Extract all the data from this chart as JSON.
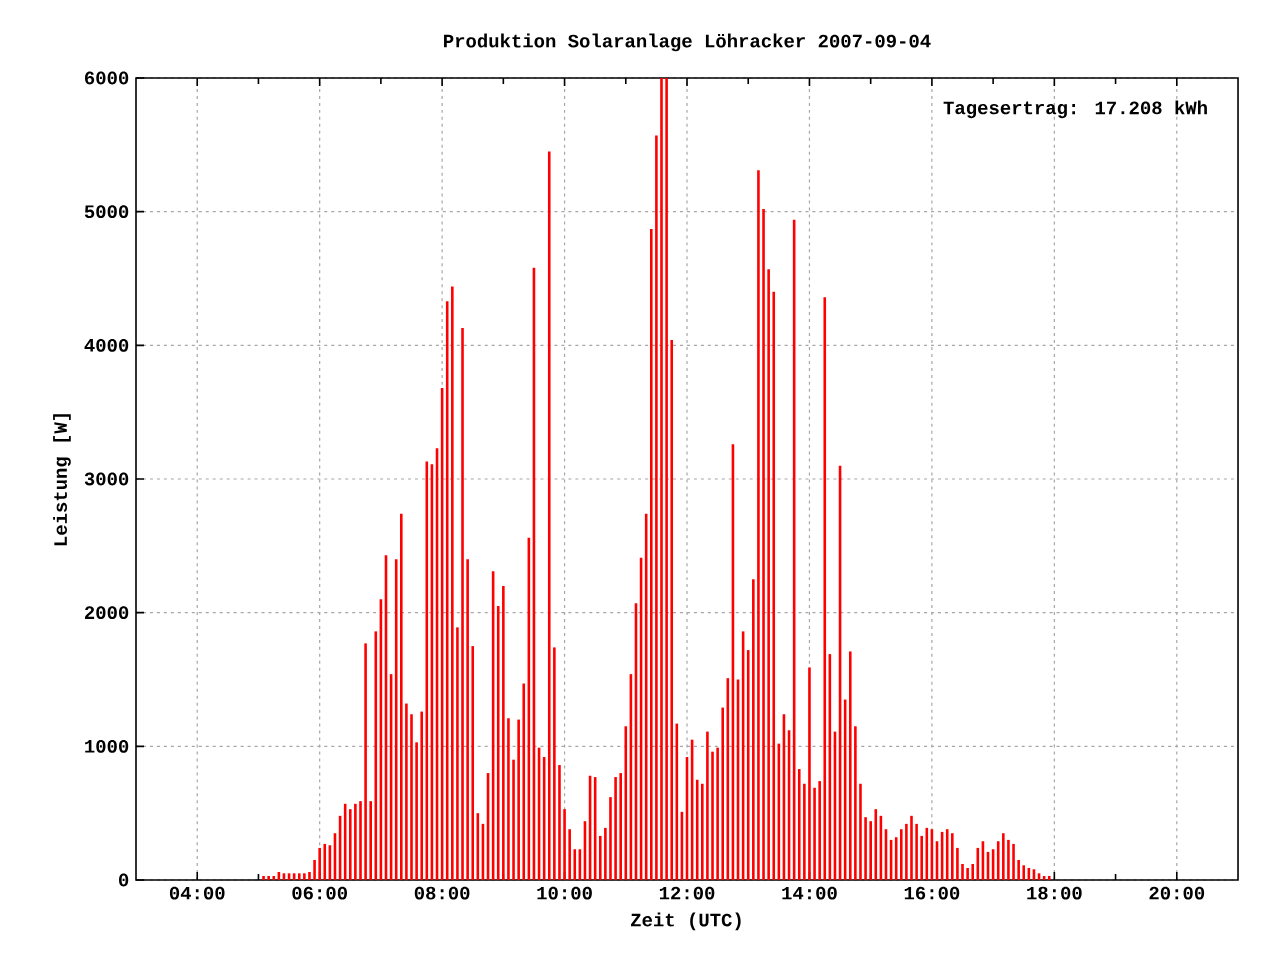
{
  "chart_data": {
    "type": "bar",
    "title": "Produktion Solaranlage Löhracker 2007-09-04",
    "xlabel": "Zeit (UTC)",
    "ylabel": "Leistung [W]",
    "annotations": [
      "Tagesertrag: 17.208 kWh"
    ],
    "x": [
      5.0833,
      5.1667,
      5.25,
      5.3333,
      5.4167,
      5.5,
      5.5833,
      5.6667,
      5.75,
      5.8333,
      5.9167,
      6,
      6.0833,
      6.1667,
      6.25,
      6.3333,
      6.4167,
      6.5,
      6.5833,
      6.6667,
      6.75,
      6.8333,
      6.9167,
      7,
      7.0833,
      7.1667,
      7.25,
      7.3333,
      7.4167,
      7.5,
      7.5833,
      7.6667,
      7.75,
      7.8333,
      7.9167,
      8,
      8.0833,
      8.1667,
      8.25,
      8.3333,
      8.4167,
      8.5,
      8.5833,
      8.6667,
      8.75,
      8.8333,
      8.9167,
      9,
      9.0833,
      9.1667,
      9.25,
      9.3333,
      9.4167,
      9.5,
      9.5833,
      9.6667,
      9.75,
      9.8333,
      9.9167,
      10,
      10.0833,
      10.1667,
      10.25,
      10.3333,
      10.4167,
      10.5,
      10.5833,
      10.6667,
      10.75,
      10.8333,
      10.9167,
      11,
      11.0833,
      11.1667,
      11.25,
      11.3333,
      11.4167,
      11.5,
      11.5833,
      11.6667,
      11.75,
      11.8333,
      11.9167,
      12,
      12.0833,
      12.1667,
      12.25,
      12.3333,
      12.4167,
      12.5,
      12.5833,
      12.6667,
      12.75,
      12.8333,
      12.9167,
      13,
      13.0833,
      13.1667,
      13.25,
      13.3333,
      13.4167,
      13.5,
      13.5833,
      13.6667,
      13.75,
      13.8333,
      13.9167,
      14,
      14.0833,
      14.1667,
      14.25,
      14.3333,
      14.4167,
      14.5,
      14.5833,
      14.6667,
      14.75,
      14.8333,
      14.9167,
      15,
      15.0833,
      15.1667,
      15.25,
      15.3333,
      15.4167,
      15.5,
      15.5833,
      15.6667,
      15.75,
      15.8333,
      15.9167,
      16,
      16.0833,
      16.1667,
      16.25,
      16.3333,
      16.4167,
      16.5,
      16.5833,
      16.6667,
      16.75,
      16.8333,
      16.9167,
      17,
      17.0833,
      17.1667,
      17.25,
      17.3333,
      17.4167,
      17.5,
      17.5833,
      17.6667,
      17.75,
      17.8333,
      17.9167
    ],
    "values": [
      30,
      30,
      30,
      60,
      50,
      50,
      50,
      50,
      50,
      60,
      150,
      240,
      270,
      260,
      350,
      480,
      570,
      530,
      570,
      590,
      1770,
      590,
      1860,
      2100,
      2430,
      1540,
      2400,
      2740,
      1320,
      1240,
      1030,
      1260,
      3130,
      3110,
      3230,
      3680,
      4330,
      4440,
      1890,
      4130,
      2400,
      1750,
      500,
      420,
      800,
      2310,
      2050,
      2200,
      1210,
      900,
      1200,
      1470,
      2560,
      4580,
      990,
      920,
      5450,
      1740,
      860,
      530,
      380,
      230,
      230,
      440,
      780,
      770,
      330,
      390,
      620,
      770,
      800,
      1150,
      1540,
      2070,
      2410,
      2740,
      4870,
      5570,
      6000,
      6000,
      4040,
      1170,
      510,
      920,
      1050,
      750,
      720,
      1110,
      960,
      990,
      1290,
      1510,
      3260,
      1500,
      1860,
      1720,
      2250,
      5310,
      5020,
      4570,
      4400,
      1020,
      1240,
      1120,
      4940,
      830,
      720,
      1590,
      690,
      740,
      4360,
      1690,
      1110,
      3100,
      1350,
      1710,
      1150,
      720,
      470,
      440,
      530,
      480,
      380,
      300,
      320,
      380,
      420,
      480,
      420,
      330,
      390,
      380,
      290,
      360,
      380,
      350,
      240,
      120,
      90,
      120,
      240,
      290,
      210,
      230,
      290,
      350,
      300,
      270,
      150,
      110,
      90,
      80,
      50,
      30,
      30
    ],
    "color": "#ff0000",
    "xlim": [
      3,
      21
    ],
    "xticks": [
      {
        "value": 4,
        "label": "04:00"
      },
      {
        "value": 6,
        "label": "06:00"
      },
      {
        "value": 8,
        "label": "08:00"
      },
      {
        "value": 10,
        "label": "10:00"
      },
      {
        "value": 12,
        "label": "12:00"
      },
      {
        "value": 14,
        "label": "14:00"
      },
      {
        "value": 16,
        "label": "16:00"
      },
      {
        "value": 18,
        "label": "18:00"
      },
      {
        "value": 20,
        "label": "20:00"
      }
    ],
    "ylim": [
      0,
      6000
    ],
    "yticks": [
      0,
      1000,
      2000,
      3000,
      4000,
      5000,
      6000
    ],
    "grid": true
  }
}
